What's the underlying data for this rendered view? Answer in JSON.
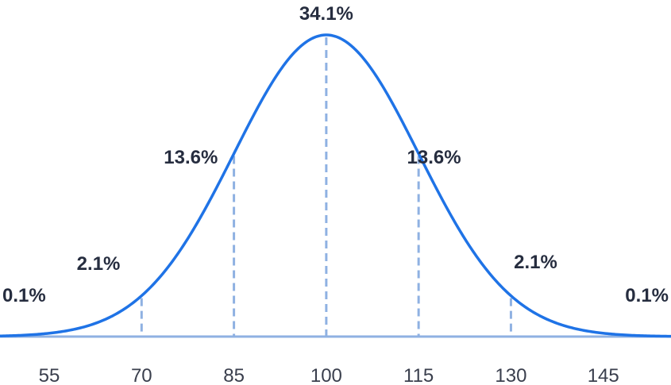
{
  "chart_data": {
    "type": "line",
    "distribution": "normal",
    "mean": 100,
    "sd": 15,
    "xlim": [
      47,
      156
    ],
    "x_ticks": [
      "55",
      "70",
      "85",
      "100",
      "115",
      "130",
      "145"
    ],
    "x_tick_values": [
      55,
      70,
      85,
      100,
      115,
      130,
      145
    ],
    "markers": [
      {
        "x": 70
      },
      {
        "x": 85
      },
      {
        "x": 100
      },
      {
        "x": 115
      },
      {
        "x": 130
      }
    ],
    "band_labels": [
      {
        "text": "0.1%",
        "x": 48
      },
      {
        "text": "2.1%",
        "x": 63
      },
      {
        "text": "13.6%",
        "x": 78
      },
      {
        "text": "34.1%",
        "x": 100
      },
      {
        "text": "13.6%",
        "x": 117.5
      },
      {
        "text": "2.1%",
        "x": 134
      },
      {
        "text": "0.1%",
        "x": 154
      }
    ],
    "grid": false,
    "colors": {
      "curve": "#1f73e6",
      "baseline": "#8fb1e2",
      "marker": "#8fb1e2",
      "label": "#262d3f",
      "tick": "#3a3f4d"
    }
  }
}
